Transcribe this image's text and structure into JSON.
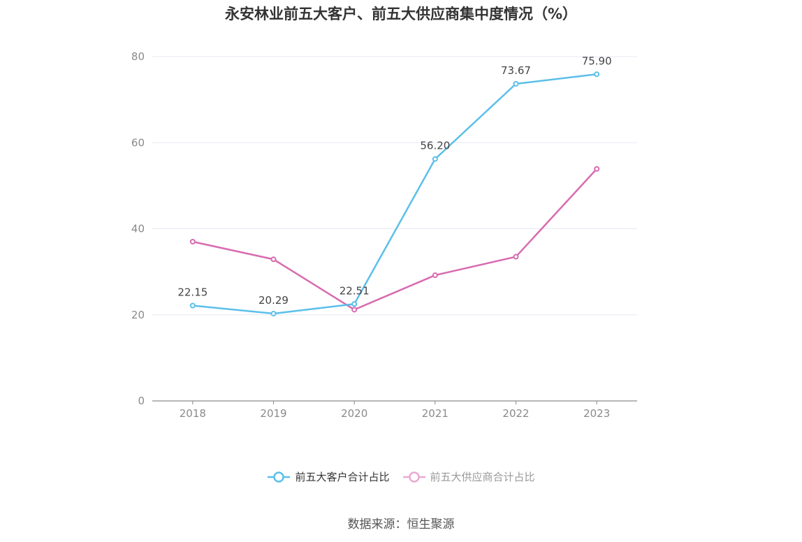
{
  "chart_data": {
    "type": "line",
    "title": "永安林业前五大客户、前五大供应商集中度情况（%）",
    "categories": [
      "2018",
      "2019",
      "2020",
      "2021",
      "2022",
      "2023"
    ],
    "ylim": [
      0,
      80
    ],
    "yticks": [
      0,
      20,
      40,
      60,
      80
    ],
    "grid": true,
    "legend_position": "bottom",
    "series": [
      {
        "name": "前五大客户合计占比",
        "color": "#5bbfea",
        "values": [
          22.15,
          20.29,
          22.51,
          56.2,
          73.67,
          75.9
        ],
        "labels": [
          "22.15",
          "20.29",
          "22.51",
          "56.20",
          "73.67",
          "75.90"
        ]
      },
      {
        "name": "前五大供应商合计占比",
        "color": "#d86bb0",
        "legend_color": "#eba9d3",
        "values": [
          37.0,
          32.9,
          21.2,
          29.2,
          33.5,
          53.9
        ]
      }
    ]
  },
  "source": "数据来源：恒生聚源"
}
